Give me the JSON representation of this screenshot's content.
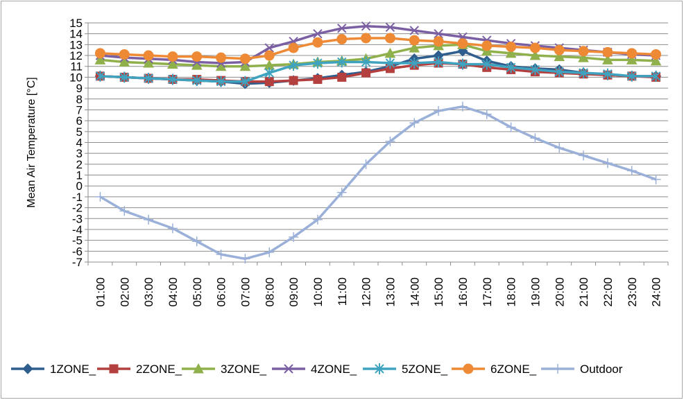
{
  "chart_data": {
    "type": "line",
    "ylabel": "Mean Air Temperature [°C]",
    "xlabel": "",
    "ylim": [
      -7,
      15
    ],
    "y_ticks": [
      "15",
      "14",
      "13",
      "12",
      "11",
      "10",
      "9",
      "8",
      "7",
      "6",
      "5",
      "4",
      "3",
      "2",
      "1",
      "0",
      "-1",
      "-2",
      "-3",
      "-4",
      "-5",
      "-6",
      "-7"
    ],
    "y_tick_values": [
      15,
      14,
      13,
      12,
      11,
      10,
      9,
      8,
      7,
      6,
      5,
      4,
      3,
      2,
      1,
      0,
      -1,
      -2,
      -3,
      -4,
      -5,
      -6,
      -7
    ],
    "categories": [
      "01:00",
      "02:00",
      "03:00",
      "04:00",
      "05:00",
      "06:00",
      "07:00",
      "08:00",
      "09:00",
      "10:00",
      "11:00",
      "12:00",
      "13:00",
      "14:00",
      "15:00",
      "16:00",
      "17:00",
      "18:00",
      "19:00",
      "20:00",
      "21:00",
      "22:00",
      "23:00",
      "24:00"
    ],
    "grid": "horizontal",
    "legend_position": "bottom",
    "series": [
      {
        "name": "1ZONE_",
        "color": "#2f5e8e",
        "marker": "diamond",
        "values": [
          10.1,
          10.0,
          9.9,
          9.8,
          9.7,
          9.6,
          9.4,
          9.5,
          9.7,
          9.9,
          10.2,
          10.5,
          11.0,
          11.7,
          12.0,
          12.4,
          11.5,
          11.0,
          10.8,
          10.7,
          10.4,
          10.2,
          10.1,
          10.1
        ]
      },
      {
        "name": "2ZONE_",
        "color": "#b3403e",
        "marker": "square",
        "values": [
          10.1,
          10.0,
          9.9,
          9.8,
          9.8,
          9.7,
          9.6,
          9.6,
          9.7,
          9.8,
          10.0,
          10.4,
          10.8,
          11.1,
          11.3,
          11.2,
          10.9,
          10.7,
          10.5,
          10.4,
          10.3,
          10.2,
          10.1,
          10.0
        ]
      },
      {
        "name": "3ZONE_",
        "color": "#8fb04a",
        "marker": "triangle",
        "values": [
          11.6,
          11.4,
          11.3,
          11.2,
          11.1,
          11.0,
          11.0,
          11.1,
          11.2,
          11.4,
          11.5,
          11.7,
          12.2,
          12.7,
          12.9,
          13.0,
          12.4,
          12.2,
          12.0,
          11.9,
          11.8,
          11.6,
          11.6,
          11.5
        ]
      },
      {
        "name": "4ZONE_",
        "color": "#7b5fa3",
        "marker": "x",
        "values": [
          12.0,
          11.8,
          11.7,
          11.6,
          11.4,
          11.3,
          11.4,
          12.7,
          13.3,
          14.0,
          14.5,
          14.7,
          14.6,
          14.3,
          14.0,
          13.7,
          13.4,
          13.1,
          12.9,
          12.7,
          12.5,
          12.3,
          12.1,
          12.0
        ]
      },
      {
        "name": "5ZONE_",
        "color": "#3fa3c0",
        "marker": "star",
        "values": [
          10.1,
          10.0,
          9.9,
          9.8,
          9.7,
          9.6,
          9.6,
          10.4,
          11.1,
          11.3,
          11.4,
          11.4,
          11.3,
          11.3,
          11.4,
          11.2,
          11.2,
          10.9,
          10.7,
          10.5,
          10.4,
          10.3,
          10.1,
          10.1
        ]
      },
      {
        "name": "6ZONE_",
        "color": "#ee8a35",
        "marker": "circle",
        "values": [
          12.2,
          12.1,
          12.0,
          11.9,
          11.9,
          11.8,
          11.7,
          12.0,
          12.7,
          13.2,
          13.5,
          13.6,
          13.6,
          13.4,
          13.3,
          13.1,
          12.9,
          12.8,
          12.7,
          12.5,
          12.4,
          12.3,
          12.2,
          12.1
        ]
      },
      {
        "name": "Outdoor",
        "color": "#9bb0d9",
        "marker": "plus",
        "values": [
          -1.0,
          -2.3,
          -3.1,
          -3.9,
          -5.1,
          -6.3,
          -6.7,
          -6.1,
          -4.7,
          -3.1,
          -0.6,
          2.0,
          4.1,
          5.8,
          6.9,
          7.3,
          6.6,
          5.4,
          4.4,
          3.5,
          2.8,
          2.1,
          1.4,
          0.6
        ]
      }
    ]
  }
}
